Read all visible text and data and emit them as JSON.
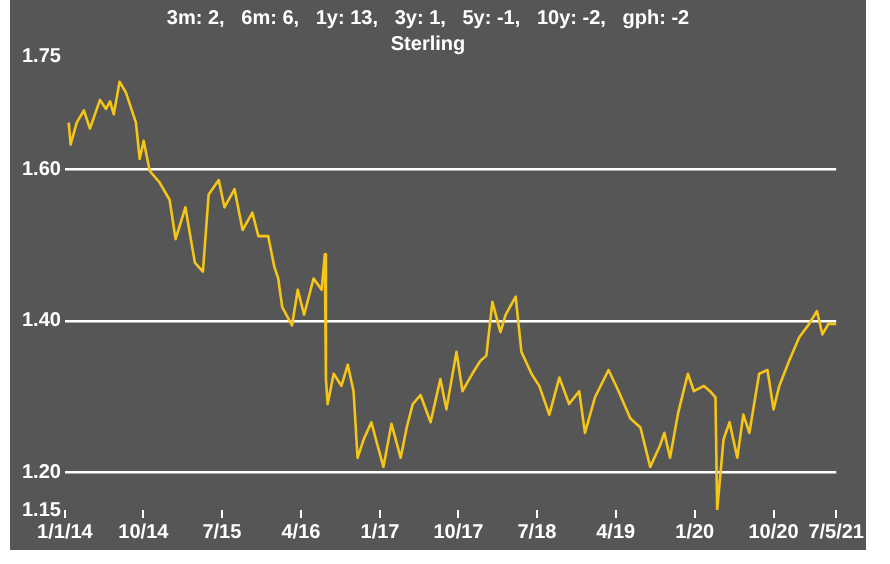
{
  "chart_data": {
    "type": "line",
    "title": "3m: 2,   6m: 6,   1y: 13,   3y: 1,   5y: -1,   10y: -2,   gph: -2",
    "subtitle": "Sterling",
    "x": [
      "2014-01-14",
      "2014-01-21",
      "2014-02-11",
      "2014-03-08",
      "2014-03-29",
      "2014-05-03",
      "2014-05-24",
      "2014-06-07",
      "2014-06-20",
      "2014-07-10",
      "2014-08-01",
      "2014-09-05",
      "2014-09-18",
      "2014-10-02",
      "2014-10-23",
      "2014-11-26",
      "2014-12-31",
      "2015-01-21",
      "2015-02-24",
      "2015-03-29",
      "2015-04-26",
      "2015-05-16",
      "2015-06-20",
      "2015-07-10",
      "2015-08-14",
      "2015-09-11",
      "2015-10-15",
      "2015-11-05",
      "2015-12-09",
      "2015-12-30",
      "2016-01-13",
      "2016-01-27",
      "2016-03-01",
      "2016-03-21",
      "2016-04-12",
      "2016-05-15",
      "2016-06-12",
      "2016-06-23",
      "2016-06-27",
      "2016-07-03",
      "2016-07-24",
      "2016-08-20",
      "2016-09-11",
      "2016-10-01",
      "2016-10-15",
      "2016-11-05",
      "2016-12-02",
      "2016-12-23",
      "2017-01-13",
      "2017-02-10",
      "2017-03-14",
      "2017-04-04",
      "2017-04-25",
      "2017-05-22",
      "2017-06-26",
      "2017-07-30",
      "2017-08-20",
      "2017-09-24",
      "2017-10-15",
      "2017-11-18",
      "2017-12-16",
      "2018-01-06",
      "2018-01-27",
      "2018-02-24",
      "2018-03-14",
      "2018-04-18",
      "2018-05-08",
      "2018-06-12",
      "2018-07-09",
      "2018-08-13",
      "2018-09-17",
      "2018-10-21",
      "2018-11-25",
      "2018-12-15",
      "2019-01-19",
      "2019-03-07",
      "2019-04-11",
      "2019-05-22",
      "2019-06-26",
      "2019-07-30",
      "2019-09-03",
      "2019-09-17",
      "2019-10-07",
      "2019-11-04",
      "2019-12-08",
      "2019-12-29",
      "2020-02-02",
      "2020-02-23",
      "2020-03-13",
      "2020-03-19",
      "2020-04-10",
      "2020-05-01",
      "2020-05-28",
      "2020-06-18",
      "2020-07-09",
      "2020-08-12",
      "2020-09-10",
      "2020-10-01",
      "2020-10-21",
      "2020-11-24",
      "2020-12-29",
      "2021-02-02",
      "2021-03-01",
      "2021-03-20",
      "2021-04-10",
      "2021-05-07"
    ],
    "series": [
      {
        "color": "#f5c518",
        "values": [
          1.662,
          1.633,
          1.662,
          1.678,
          1.654,
          1.692,
          1.68,
          1.69,
          1.673,
          1.716,
          1.702,
          1.662,
          1.614,
          1.638,
          1.598,
          1.583,
          1.56,
          1.508,
          1.55,
          1.477,
          1.465,
          1.567,
          1.586,
          1.55,
          1.574,
          1.52,
          1.543,
          1.512,
          1.512,
          1.472,
          1.456,
          1.418,
          1.394,
          1.441,
          1.408,
          1.456,
          1.441,
          1.488,
          1.323,
          1.29,
          1.33,
          1.314,
          1.342,
          1.307,
          1.219,
          1.243,
          1.266,
          1.236,
          1.207,
          1.264,
          1.219,
          1.259,
          1.29,
          1.302,
          1.266,
          1.323,
          1.283,
          1.359,
          1.307,
          1.33,
          1.347,
          1.354,
          1.425,
          1.385,
          1.408,
          1.432,
          1.359,
          1.33,
          1.314,
          1.276,
          1.325,
          1.29,
          1.307,
          1.252,
          1.299,
          1.335,
          1.307,
          1.271,
          1.259,
          1.207,
          1.236,
          1.252,
          1.219,
          1.278,
          1.33,
          1.307,
          1.314,
          1.307,
          1.299,
          1.15,
          1.243,
          1.266,
          1.219,
          1.276,
          1.252,
          1.33,
          1.335,
          1.283,
          1.314,
          1.347,
          1.378,
          1.396,
          1.413,
          1.382,
          1.396,
          1.396
        ]
      }
    ],
    "xlim": [
      "2014-01-01",
      "2021-05-07"
    ],
    "xticks": [
      {
        "value": "2014-01-01",
        "label": "1/1/14"
      },
      {
        "value": "2014-10-01",
        "label": "10/14"
      },
      {
        "value": "2015-07-01",
        "label": "7/15"
      },
      {
        "value": "2016-04-01",
        "label": "4/16"
      },
      {
        "value": "2017-01-01",
        "label": "1/17"
      },
      {
        "value": "2017-10-01",
        "label": "10/17"
      },
      {
        "value": "2018-07-01",
        "label": "7/18"
      },
      {
        "value": "2019-04-01",
        "label": "4/19"
      },
      {
        "value": "2020-01-01",
        "label": "1/20"
      },
      {
        "value": "2020-10-01",
        "label": "10/20"
      },
      {
        "value": "2021-05-07",
        "label": "7/5/21"
      }
    ],
    "ylim": [
      1.15,
      1.75
    ],
    "yticks": [
      {
        "value": 1.15,
        "label": "1.15"
      },
      {
        "value": 1.2,
        "label": "1.20"
      },
      {
        "value": 1.4,
        "label": "1.40"
      },
      {
        "value": 1.6,
        "label": "1.60"
      },
      {
        "value": 1.75,
        "label": "1.75"
      }
    ],
    "grid": "y",
    "legend": false,
    "marker": "none",
    "line_style": "solid"
  }
}
